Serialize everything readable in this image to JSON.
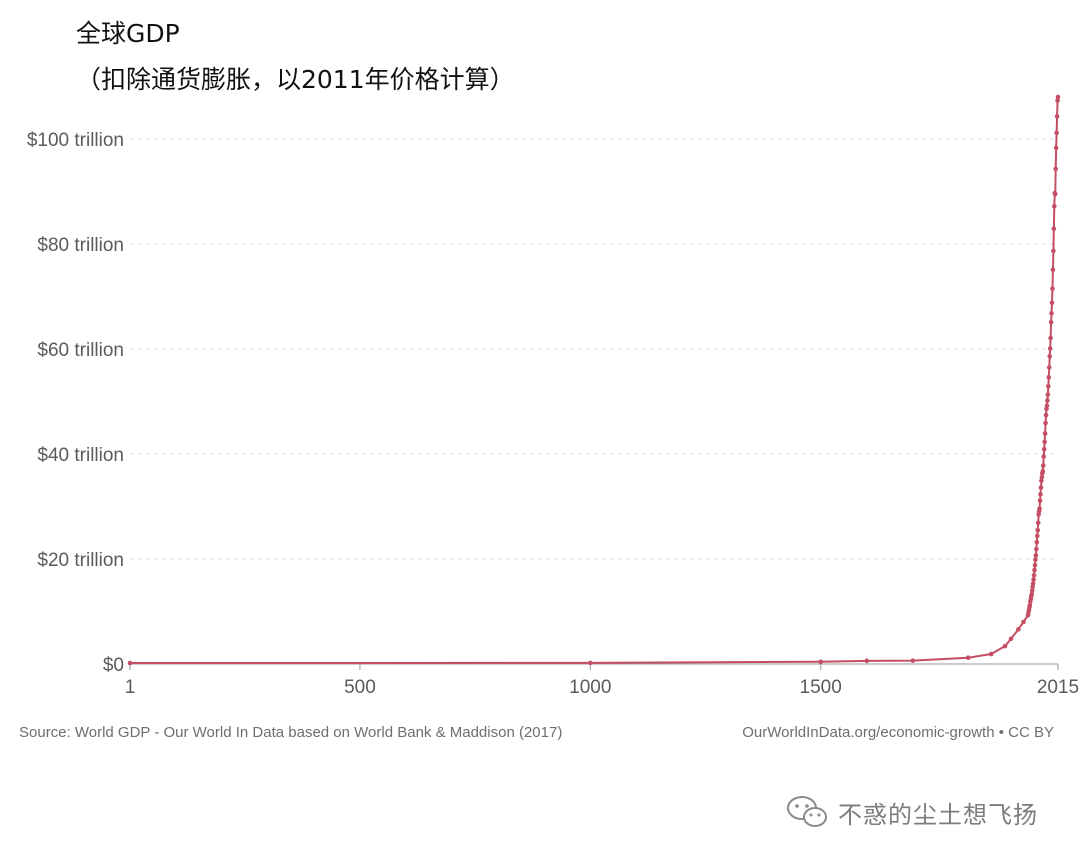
{
  "chart_data": {
    "type": "line",
    "title": "全球GDP",
    "subtitle": "（扣除通货膨胀，以2011年价格计算）",
    "xlabel": "",
    "ylabel": "",
    "xlim": [
      1,
      2015
    ],
    "ylim": [
      0,
      108
    ],
    "x_ticks": [
      1,
      500,
      1000,
      1500,
      2015
    ],
    "x_tick_labels": [
      "1",
      "500",
      "1000",
      "1500",
      "2015"
    ],
    "y_ticks": [
      0,
      20,
      40,
      60,
      80,
      100
    ],
    "y_tick_labels": [
      "$0",
      "$20 trillion",
      "$40 trillion",
      "$60 trillion",
      "$80 trillion",
      "$100 trillion"
    ],
    "grid": "horizontal dashed",
    "legend": "none",
    "line_color": "#c44e63",
    "series": [
      {
        "x": [
          1,
          1000,
          1500,
          1600,
          1700,
          1820,
          1870,
          1900,
          1913,
          1929,
          1940,
          1950,
          1951,
          1952,
          1953,
          1954,
          1955,
          1956,
          1957,
          1958,
          1959,
          1960,
          1961,
          1962,
          1963,
          1964,
          1965,
          1966,
          1967,
          1968,
          1969,
          1970,
          1971,
          1972,
          1973,
          1974,
          1975,
          1976,
          1977,
          1978,
          1979,
          1980,
          1981,
          1982,
          1983,
          1984,
          1985,
          1986,
          1987,
          1988,
          1989,
          1990,
          1991,
          1992,
          1993,
          1994,
          1995,
          1996,
          1997,
          1998,
          1999,
          2000,
          2001,
          2002,
          2003,
          2004,
          2005,
          2006,
          2007,
          2008,
          2009,
          2010,
          2011,
          2012,
          2013,
          2014,
          2015
        ],
        "y": [
          0.18,
          0.21,
          0.43,
          0.6,
          0.64,
          1.2,
          1.9,
          3.4,
          4.8,
          6.6,
          8.0,
          9.3,
          9.9,
          10.3,
          10.8,
          11.2,
          11.9,
          12.4,
          12.9,
          13.3,
          14.0,
          14.7,
          15.3,
          16.1,
          16.9,
          17.9,
          18.8,
          19.9,
          20.7,
          21.9,
          23.2,
          24.4,
          25.5,
          26.9,
          28.5,
          29.1,
          29.6,
          31.1,
          32.3,
          33.6,
          34.9,
          35.6,
          36.3,
          36.7,
          37.8,
          39.5,
          40.9,
          42.3,
          43.9,
          45.9,
          47.4,
          48.6,
          49.2,
          50.2,
          51.3,
          52.9,
          54.6,
          56.5,
          58.6,
          60.1,
          62.1,
          65.1,
          66.8,
          68.8,
          71.5,
          75.1,
          78.7,
          82.9,
          87.2,
          89.7,
          89.5,
          94.3,
          98.3,
          101.2,
          104.3,
          107.3,
          108.0
        ]
      }
    ]
  },
  "footer": {
    "source": "Source: World GDP - Our World In Data based on World Bank & Maddison (2017)",
    "credit": "OurWorldInData.org/economic-growth • CC BY"
  },
  "watermark": {
    "text": "不惑的尘土想飞扬",
    "icon": "wechat-icon"
  }
}
